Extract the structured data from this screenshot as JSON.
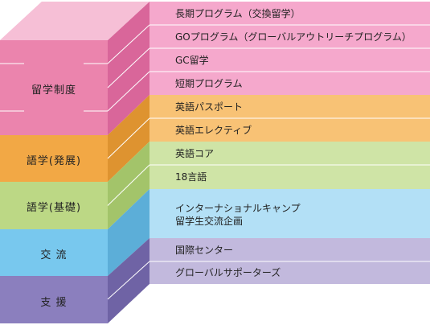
{
  "categories": [
    {
      "id": "study-abroad",
      "label": "留学制度",
      "colors": {
        "front": "#eb84ad",
        "side": "#d9669a",
        "top": "#f6bfd6",
        "panel": "#f5a8cc"
      },
      "items": [
        "長期プログラム（交換留学）",
        "GOプログラム（グローバルアウトリーチプログラム）",
        "GC留学",
        "短期プログラム"
      ]
    },
    {
      "id": "language-advanced",
      "label": "語学(発展)",
      "colors": {
        "front": "#f2a845",
        "side": "#de9330",
        "panel": "#f8c275"
      },
      "items": [
        "英語パスポート",
        "英語エレクティブ"
      ]
    },
    {
      "id": "language-basic",
      "label": "語学(基礎)",
      "colors": {
        "front": "#bcd885",
        "side": "#a3c46a",
        "panel": "#cfe4a6"
      },
      "items": [
        "英語コア",
        "18言語"
      ]
    },
    {
      "id": "exchange",
      "label": "交 流",
      "colors": {
        "front": "#78c8ee",
        "side": "#5caed8",
        "panel": "#b3e0f6"
      },
      "items": [
        "インターナショナルキャンプ",
        "留学生交流企画"
      ]
    },
    {
      "id": "support",
      "label": "支 援",
      "colors": {
        "front": "#8b7fbe",
        "side": "#6f63a5",
        "panel": "#c2b9dd"
      },
      "items": [
        "国際センター",
        "グローバルサポーターズ"
      ]
    }
  ]
}
